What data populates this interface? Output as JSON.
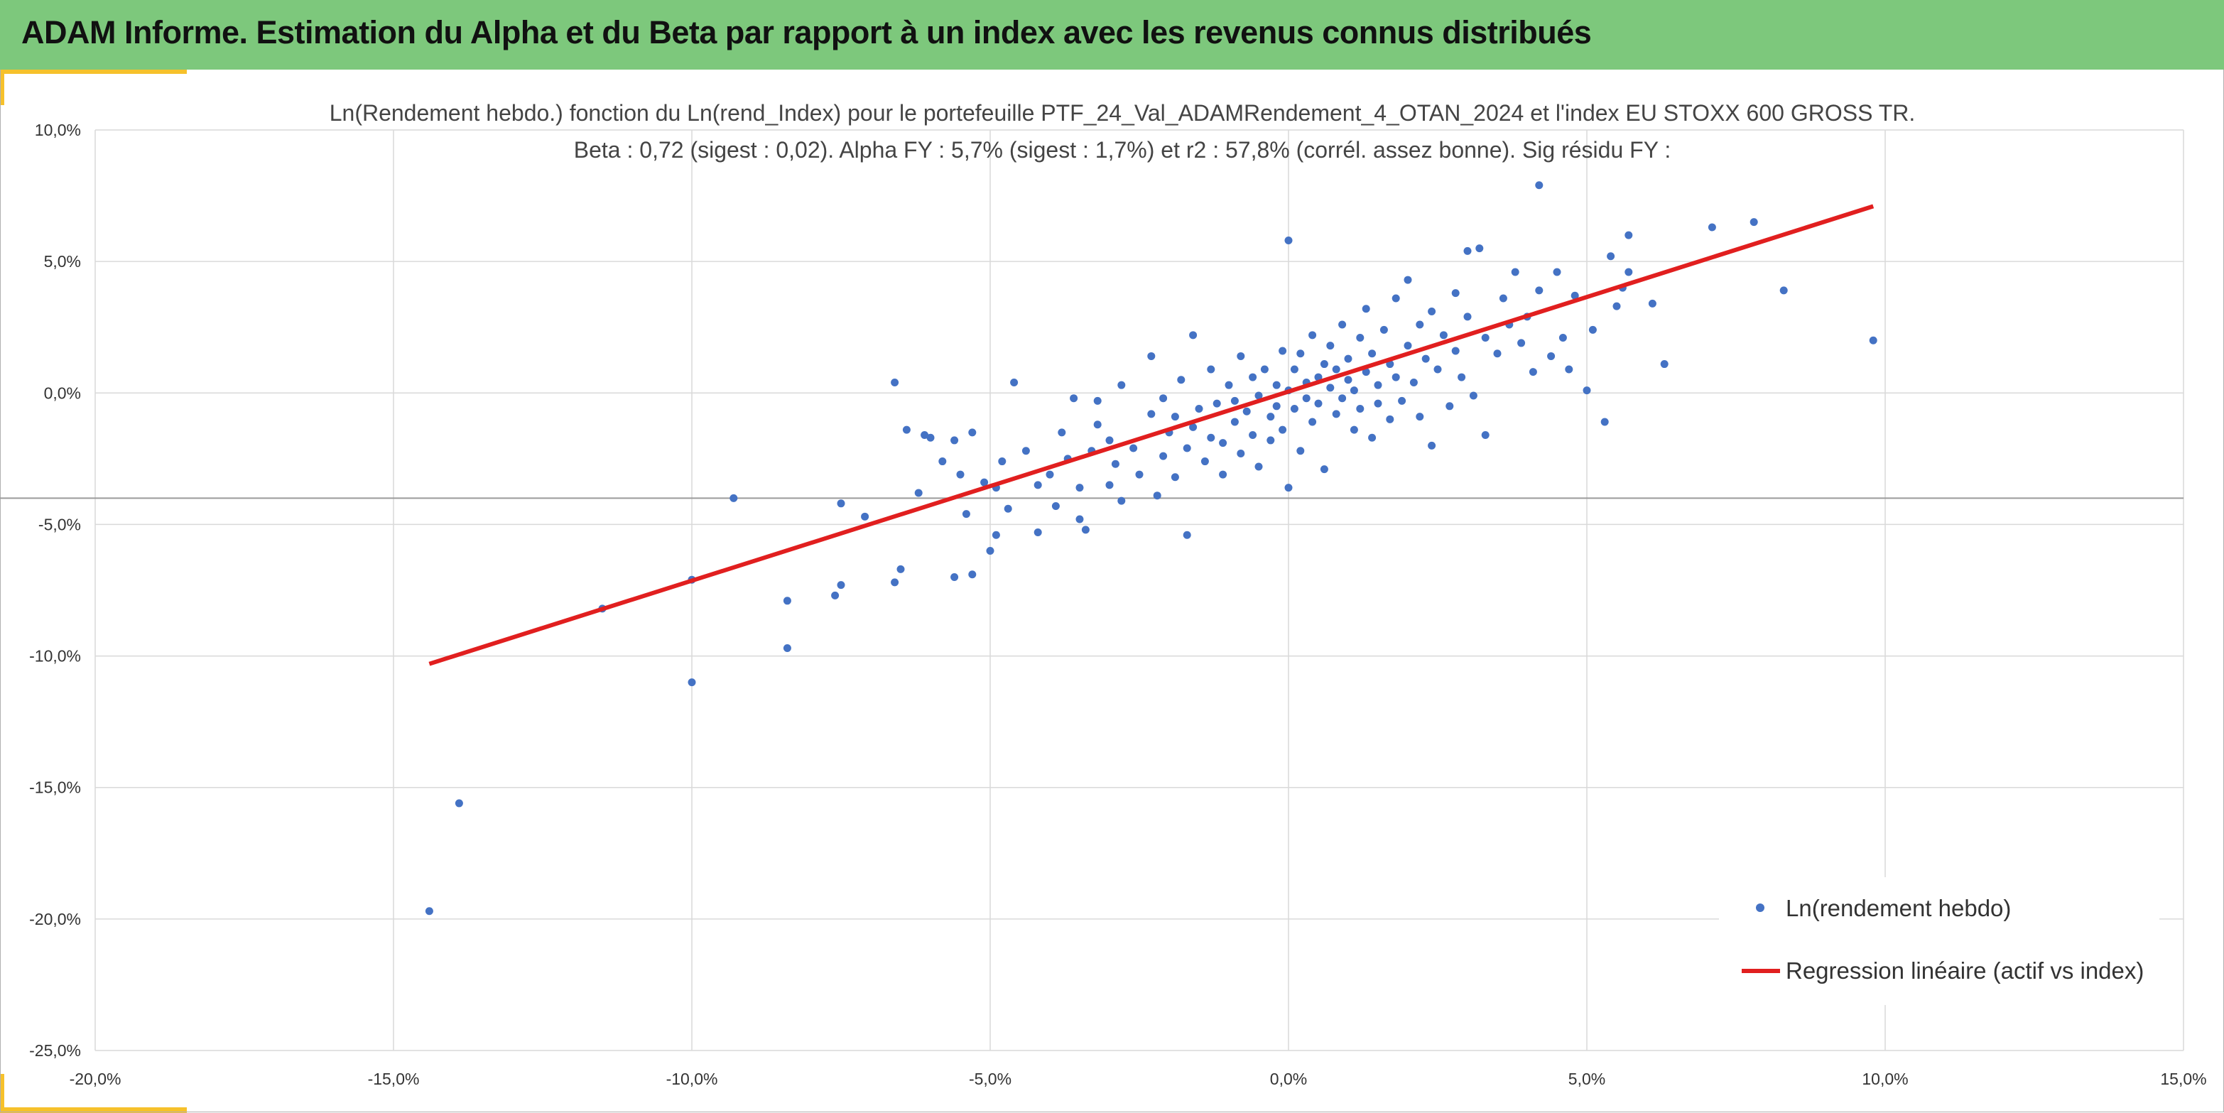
{
  "header": {
    "title": "ADAM Informe. Estimation du Alpha et du Beta par rapport à un index avec les revenus connus distribués",
    "color": "#7dc87c",
    "accent_color": "#f6c12b"
  },
  "chart_data": {
    "type": "scatter",
    "title": "Ln(Rendement hebdo.) fonction du Ln(rend_Index) pour le portefeuille PTF_24_Val_ADAMRendement_4_OTAN_2024 et l'index EU STOXX 600 GROSS TR.",
    "subtitle": "Beta : 0,72 (sigest : 0,02). Alpha FY : 5,7% (sigest : 1,7%) et r2 : 57,8% (corrél. assez bonne). Sig résidu FY :",
    "xlim": [
      -20,
      15
    ],
    "ylim": [
      -25,
      10
    ],
    "x_ticks": [
      -20,
      -15,
      -10,
      -5,
      0,
      5,
      10,
      15
    ],
    "y_ticks": [
      10,
      5,
      0,
      -5,
      -10,
      -15,
      -20,
      -25
    ],
    "x_tick_labels": [
      "-20,0%",
      "-15,0%",
      "-10,0%",
      "-5,0%",
      "0,0%",
      "5,0%",
      "10,0%",
      "15,0%"
    ],
    "y_tick_labels": [
      "10,0%",
      "5,0%",
      "0,0%",
      "-5,0%",
      "-10,0%",
      "-15,0%",
      "-20,0%",
      "-25,0%"
    ],
    "reference_line_y": -4,
    "grid": true,
    "legend_position": "bottom-right",
    "series": [
      {
        "name": "Ln(rendement hebdo)",
        "kind": "scatter",
        "color": "#4472c4",
        "points": [
          [
            -14.4,
            -19.7
          ],
          [
            -13.9,
            -15.6
          ],
          [
            -11.5,
            -8.2
          ],
          [
            -10,
            -7.1
          ],
          [
            -10,
            -11
          ],
          [
            -9.3,
            -4
          ],
          [
            -8.4,
            -7.9
          ],
          [
            -8.4,
            -9.7
          ],
          [
            -7.6,
            -7.7
          ],
          [
            -7.5,
            -7.3
          ],
          [
            -7.5,
            -4.2
          ],
          [
            -7.1,
            -4.7
          ],
          [
            -6.6,
            0.4
          ],
          [
            -6.6,
            -7.2
          ],
          [
            -6.5,
            -6.7
          ],
          [
            -6.4,
            -1.4
          ],
          [
            -6.2,
            -3.8
          ],
          [
            -6.1,
            -1.6
          ],
          [
            -6,
            -1.7
          ],
          [
            -5.8,
            -2.6
          ],
          [
            -5.6,
            -7
          ],
          [
            -5.6,
            -1.8
          ],
          [
            -5.5,
            -3.1
          ],
          [
            -5.4,
            -4.6
          ],
          [
            -5.3,
            -1.5
          ],
          [
            -5.3,
            -6.9
          ],
          [
            -5.1,
            -3.4
          ],
          [
            -5,
            -6
          ],
          [
            -4.9,
            -5.4
          ],
          [
            -4.7,
            -4.4
          ],
          [
            -4.9,
            -3.6
          ],
          [
            -4.8,
            -2.6
          ],
          [
            -4.6,
            0.4
          ],
          [
            -4.4,
            -2.2
          ],
          [
            -4.2,
            -3.5
          ],
          [
            -4.2,
            -5.3
          ],
          [
            -4,
            -3.1
          ],
          [
            -3.9,
            -4.3
          ],
          [
            -3.8,
            -1.5
          ],
          [
            -3.7,
            -2.5
          ],
          [
            -3.6,
            -0.2
          ],
          [
            -3.5,
            -3.6
          ],
          [
            -3.5,
            -4.8
          ],
          [
            -3.4,
            -5.2
          ],
          [
            -3.3,
            -2.2
          ],
          [
            -3.2,
            -1.2
          ],
          [
            -3.2,
            -0.3
          ],
          [
            -3,
            -3.5
          ],
          [
            -3,
            -1.8
          ],
          [
            -2.9,
            -2.7
          ],
          [
            -2.8,
            0.3
          ],
          [
            -2.8,
            -4.1
          ],
          [
            -2.6,
            -2.1
          ],
          [
            -2.5,
            -3.1
          ],
          [
            -2.3,
            1.4
          ],
          [
            -2.3,
            -0.8
          ],
          [
            -2.2,
            -3.9
          ],
          [
            -2.1,
            -2.4
          ],
          [
            -2.1,
            -0.2
          ],
          [
            -2,
            -1.5
          ],
          [
            -1.9,
            -3.2
          ],
          [
            -1.9,
            -0.9
          ],
          [
            -1.8,
            0.5
          ],
          [
            -1.7,
            -2.1
          ],
          [
            -1.7,
            -5.4
          ],
          [
            -1.6,
            -1.3
          ],
          [
            -1.6,
            2.2
          ],
          [
            -1.5,
            -0.6
          ],
          [
            -1.4,
            -2.6
          ],
          [
            -1.3,
            -1.7
          ],
          [
            -1.3,
            0.9
          ],
          [
            -1.2,
            -0.4
          ],
          [
            -1.1,
            -1.9
          ],
          [
            -1.1,
            -3.1
          ],
          [
            -1,
            0.3
          ],
          [
            -0.9,
            -1.1
          ],
          [
            -0.9,
            -0.3
          ],
          [
            -0.8,
            -2.3
          ],
          [
            -0.8,
            1.4
          ],
          [
            -0.7,
            -0.7
          ],
          [
            -0.6,
            0.6
          ],
          [
            -0.6,
            -1.6
          ],
          [
            -0.5,
            -0.1
          ],
          [
            -0.5,
            -2.8
          ],
          [
            -0.4,
            0.9
          ],
          [
            -0.3,
            -0.9
          ],
          [
            -0.3,
            -1.8
          ],
          [
            -0.2,
            0.3
          ],
          [
            -0.2,
            -0.5
          ],
          [
            -0.1,
            1.6
          ],
          [
            -0.1,
            -1.4
          ],
          [
            0,
            5.8
          ],
          [
            0,
            0.1
          ],
          [
            0,
            -3.6
          ],
          [
            0.1,
            -0.6
          ],
          [
            0.1,
            0.9
          ],
          [
            0.2,
            -2.2
          ],
          [
            0.2,
            1.5
          ],
          [
            0.3,
            0.4
          ],
          [
            0.3,
            -0.2
          ],
          [
            0.4,
            -1.1
          ],
          [
            0.4,
            2.2
          ],
          [
            0.5,
            0.6
          ],
          [
            0.5,
            -0.4
          ],
          [
            0.6,
            1.1
          ],
          [
            0.6,
            -2.9
          ],
          [
            0.7,
            0.2
          ],
          [
            0.7,
            1.8
          ],
          [
            0.8,
            -0.8
          ],
          [
            0.8,
            0.9
          ],
          [
            0.9,
            2.6
          ],
          [
            0.9,
            -0.2
          ],
          [
            1,
            0.5
          ],
          [
            1,
            1.3
          ],
          [
            1.1,
            -1.4
          ],
          [
            1.1,
            0.1
          ],
          [
            1.2,
            2.1
          ],
          [
            1.2,
            -0.6
          ],
          [
            1.3,
            0.8
          ],
          [
            1.3,
            3.2
          ],
          [
            1.4,
            -1.7
          ],
          [
            1.4,
            1.5
          ],
          [
            1.5,
            0.3
          ],
          [
            1.5,
            -0.4
          ],
          [
            1.6,
            2.4
          ],
          [
            1.7,
            1.1
          ],
          [
            1.7,
            -1
          ],
          [
            1.8,
            0.6
          ],
          [
            1.8,
            3.6
          ],
          [
            1.9,
            -0.3
          ],
          [
            2,
            1.8
          ],
          [
            2,
            4.3
          ],
          [
            2.1,
            0.4
          ],
          [
            2.2,
            2.6
          ],
          [
            2.2,
            -0.9
          ],
          [
            2.3,
            1.3
          ],
          [
            2.4,
            3.1
          ],
          [
            2.4,
            -2
          ],
          [
            2.5,
            0.9
          ],
          [
            2.6,
            2.2
          ],
          [
            2.7,
            -0.5
          ],
          [
            2.8,
            1.6
          ],
          [
            2.8,
            3.8
          ],
          [
            2.9,
            0.6
          ],
          [
            3,
            2.9
          ],
          [
            3,
            5.4
          ],
          [
            3.1,
            -0.1
          ],
          [
            3.2,
            5.5
          ],
          [
            3.3,
            2.1
          ],
          [
            3.3,
            -1.6
          ],
          [
            3.5,
            1.5
          ],
          [
            3.6,
            3.6
          ],
          [
            3.7,
            2.6
          ],
          [
            3.8,
            4.6
          ],
          [
            3.9,
            1.9
          ],
          [
            4,
            2.9
          ],
          [
            4.1,
            0.8
          ],
          [
            4.2,
            3.9
          ],
          [
            4.2,
            7.9
          ],
          [
            4.4,
            1.4
          ],
          [
            4.5,
            4.6
          ],
          [
            4.6,
            2.1
          ],
          [
            4.7,
            0.9
          ],
          [
            4.8,
            3.7
          ],
          [
            5,
            0.1
          ],
          [
            5.1,
            2.4
          ],
          [
            5.3,
            -1.1
          ],
          [
            5.4,
            5.2
          ],
          [
            5.5,
            3.3
          ],
          [
            5.6,
            4
          ],
          [
            5.7,
            4.6
          ],
          [
            5.7,
            6
          ],
          [
            6.1,
            3.4
          ],
          [
            6.3,
            1.1
          ],
          [
            7.1,
            6.3
          ],
          [
            7.8,
            6.5
          ],
          [
            8.3,
            3.9
          ],
          [
            9.8,
            2
          ]
        ]
      },
      {
        "name": "Regression linéaire (actif vs index)",
        "kind": "line",
        "color": "#e11f1f",
        "x": [
          -14.4,
          9.8
        ],
        "y": [
          -10.3,
          7.1
        ]
      }
    ]
  }
}
